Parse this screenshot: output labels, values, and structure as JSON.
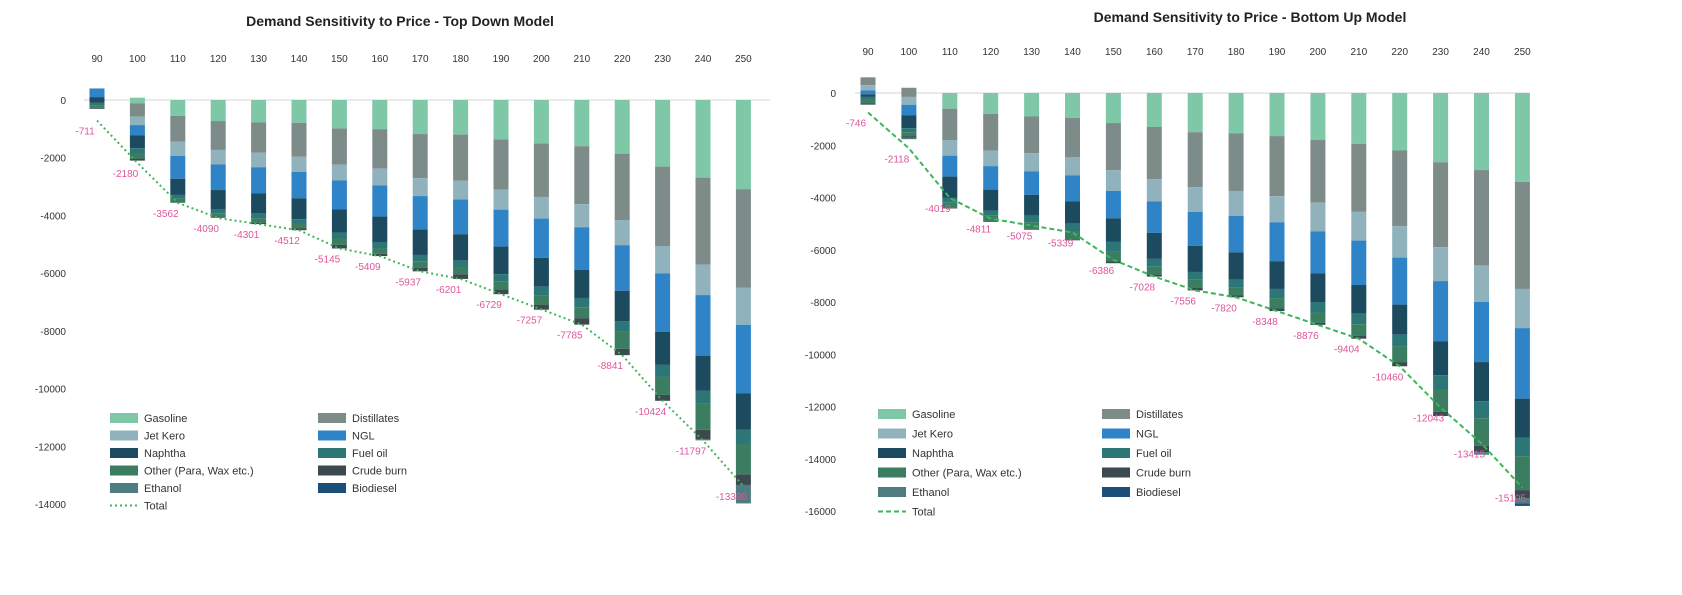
{
  "colors": {
    "Gasoline": "#7ec8a8",
    "Distillates": "#7d8b89",
    "Jet Kero": "#8fb2bd",
    "NGL": "#2f83c7",
    "Naphtha": "#1c4a5e",
    "Fuel oil": "#2d7678",
    "Other (Para, Wax etc.)": "#3a7d61",
    "Crude burn": "#3c4a50",
    "Ethanol": "#4f7c80",
    "Biodiesel": "#1b4f7a",
    "Total": "#3fb55a",
    "label": "#e0559a"
  },
  "chart_data": [
    {
      "type": "bar",
      "stacked": true,
      "title": "Demand Sensitivity to Price - Top Down Model",
      "categories": [
        "90",
        "100",
        "110",
        "120",
        "130",
        "140",
        "150",
        "160",
        "170",
        "180",
        "190",
        "200",
        "210",
        "220",
        "230",
        "240",
        "250"
      ],
      "x_axis_position": "top",
      "ylim": [
        -14000,
        0
      ],
      "yticks": [
        "0",
        "-2000",
        "-4000",
        "-6000",
        "-8000",
        "-10000",
        "-12000",
        "-14000"
      ],
      "grid": false,
      "legend_position": "bottom-left",
      "legend": [
        "Gasoline",
        "Distillates",
        "Jet Kero",
        "NGL",
        "Naphtha",
        "Fuel oil",
        "Other (Para, Wax etc.)",
        "Crude burn",
        "Ethanol",
        "Biodiesel",
        "Total"
      ],
      "series": [
        {
          "name": "Gasoline",
          "values": [
            0,
            -200,
            -550,
            -730,
            -780,
            -790,
            -990,
            -1010,
            -1180,
            -1200,
            -1370,
            -1510,
            -1600,
            -1860,
            -2310,
            -2690,
            -3090
          ]
        },
        {
          "name": "Distillates",
          "values": [
            0,
            -450,
            -890,
            -1000,
            -1050,
            -1170,
            -1250,
            -1370,
            -1530,
            -1600,
            -1730,
            -1850,
            -2010,
            -2300,
            -2750,
            -3020,
            -3420
          ]
        },
        {
          "name": "Jet Kero",
          "values": [
            0,
            -300,
            -500,
            -500,
            -500,
            -530,
            -550,
            -580,
            -620,
            -650,
            -700,
            -750,
            -800,
            -870,
            -950,
            -1050,
            -1280
          ]
        },
        {
          "name": "NGL",
          "values": [
            -300,
            -350,
            -790,
            -890,
            -900,
            -920,
            -1000,
            -1080,
            -1160,
            -1200,
            -1280,
            -1360,
            -1480,
            -1580,
            -2020,
            -2100,
            -2380
          ]
        },
        {
          "name": "Naphtha",
          "values": [
            -200,
            -450,
            -560,
            -680,
            -700,
            -720,
            -800,
            -880,
            -880,
            -920,
            -960,
            -1000,
            -970,
            -1050,
            -1150,
            -1220,
            -1250
          ]
        },
        {
          "name": "Fuel oil",
          "values": [
            -100,
            -200,
            -120,
            -140,
            -170,
            -150,
            -210,
            -210,
            -220,
            -250,
            -260,
            -300,
            -320,
            -360,
            -400,
            -450,
            -500
          ]
        },
        {
          "name": "Other (Para, Wax etc.)",
          "values": [
            -71,
            -160,
            -100,
            -100,
            -150,
            -160,
            -220,
            -200,
            -230,
            -220,
            -270,
            -320,
            -380,
            -600,
            -640,
            -900,
            -1050
          ]
        },
        {
          "name": "Crude burn",
          "values": [
            -30,
            -70,
            -40,
            -40,
            -51,
            -72,
            -125,
            -79,
            -117,
            -161,
            -159,
            -177,
            -225,
            -221,
            -204,
            -317,
            -370
          ]
        },
        {
          "name": "Ethanol",
          "values": [
            -10,
            0,
            -12,
            0,
            0,
            0,
            0,
            0,
            0,
            0,
            0,
            0,
            0,
            0,
            0,
            -48,
            -640
          ]
        },
        {
          "name": "Biodiesel",
          "values": [
            0,
            0,
            0,
            0,
            0,
            0,
            0,
            0,
            0,
            0,
            0,
            0,
            0,
            0,
            0,
            0,
            0
          ]
        }
      ],
      "positive_offsets": [
        400,
        80,
        0,
        0,
        0,
        0,
        0,
        0,
        0,
        0,
        0,
        0,
        0,
        0,
        0,
        0,
        0
      ],
      "total": {
        "name": "Total",
        "values": [
          -711,
          -2180,
          -3562,
          -4090,
          -4301,
          -4512,
          -5145,
          -5409,
          -5937,
          -6201,
          -6729,
          -7257,
          -7785,
          -8841,
          -10424,
          -11797,
          -13380
        ],
        "labels": [
          "-711",
          "-2180",
          "-3562",
          "-4090",
          "-4301",
          "-4512",
          "-5145",
          "-5409",
          "-5937",
          "-6201",
          "-6729",
          "-7257",
          "-7785",
          "-8841",
          "-10424",
          "-11797",
          "-13380"
        ],
        "line_style": "dotted"
      }
    },
    {
      "type": "bar",
      "stacked": true,
      "title": "Demand Sensitivity to Price - Bottom Up Model",
      "categories": [
        "90",
        "100",
        "110",
        "120",
        "130",
        "140",
        "150",
        "160",
        "170",
        "180",
        "190",
        "200",
        "210",
        "220",
        "230",
        "240",
        "250"
      ],
      "x_axis_position": "top",
      "ylim": [
        -16000,
        0
      ],
      "yticks": [
        "0",
        "-2000",
        "-4000",
        "-6000",
        "-8000",
        "-10000",
        "-12000",
        "-14000",
        "-16000"
      ],
      "grid": false,
      "legend_position": "bottom-left",
      "legend": [
        "Gasoline",
        "Distillates",
        "Jet Kero",
        "NGL",
        "Naphtha",
        "Fuel oil",
        "Other (Para, Wax etc.)",
        "Crude burn",
        "Ethanol",
        "Biodiesel",
        "Total"
      ],
      "series": [
        {
          "name": "Gasoline",
          "values": [
            0,
            0,
            -600,
            -800,
            -900,
            -950,
            -1150,
            -1300,
            -1500,
            -1550,
            -1650,
            -1800,
            -1950,
            -2200,
            -2650,
            -2950,
            -3400
          ]
        },
        {
          "name": "Distillates",
          "values": [
            -300,
            -350,
            -1200,
            -1400,
            -1400,
            -1500,
            -1800,
            -2000,
            -2100,
            -2200,
            -2300,
            -2400,
            -2600,
            -2900,
            -3250,
            -3650,
            -4100
          ]
        },
        {
          "name": "Jet Kero",
          "values": [
            -200,
            -300,
            -600,
            -600,
            -700,
            -700,
            -800,
            -850,
            -950,
            -950,
            -1000,
            -1100,
            -1100,
            -1200,
            -1300,
            -1400,
            -1500
          ]
        },
        {
          "name": "NGL",
          "values": [
            -150,
            -400,
            -800,
            -900,
            -900,
            -1000,
            -1050,
            -1200,
            -1300,
            -1400,
            -1500,
            -1600,
            -1700,
            -1800,
            -2300,
            -2300,
            -2700
          ]
        },
        {
          "name": "Naphtha",
          "values": [
            -100,
            -500,
            -800,
            -800,
            -800,
            -850,
            -900,
            -1000,
            -1000,
            -1050,
            -1050,
            -1100,
            -1100,
            -1150,
            -1300,
            -1500,
            -1500
          ]
        },
        {
          "name": "Fuel oil",
          "values": [
            -100,
            -150,
            -200,
            -200,
            -250,
            -300,
            -350,
            -300,
            -300,
            -300,
            -350,
            -400,
            -400,
            -450,
            -550,
            -650,
            -700
          ]
        },
        {
          "name": "Other (Para, Wax etc.)",
          "values": [
            -150,
            -150,
            -200,
            -200,
            -250,
            -300,
            -400,
            -300,
            -300,
            -300,
            -400,
            -400,
            -450,
            -600,
            -850,
            -1050,
            -1300
          ]
        },
        {
          "name": "Crude burn",
          "values": [
            -46,
            -68,
            -19,
            -31,
            -33,
            -39,
            -66,
            -78,
            -106,
            -70,
            -98,
            -76,
            -104,
            -160,
            -163,
            -246,
            -305
          ]
        },
        {
          "name": "Ethanol",
          "values": [
            0,
            -50,
            0,
            0,
            0,
            0,
            0,
            0,
            0,
            0,
            0,
            0,
            0,
            0,
            0,
            -100,
            -200
          ]
        },
        {
          "name": "Biodiesel",
          "values": [
            0,
            0,
            0,
            0,
            0,
            0,
            0,
            0,
            0,
            0,
            0,
            0,
            0,
            0,
            0,
            0,
            -100
          ]
        }
      ],
      "positive_offsets": [
        600,
        200,
        0,
        0,
        0,
        0,
        0,
        0,
        0,
        0,
        0,
        0,
        0,
        0,
        0,
        0,
        0
      ],
      "total": {
        "name": "Total",
        "values": [
          -746,
          -2118,
          -4019,
          -4811,
          -5075,
          -5339,
          -6386,
          -7028,
          -7556,
          -7820,
          -8348,
          -8876,
          -9404,
          -10460,
          -12043,
          -13415,
          -15105
        ],
        "labels": [
          "-746",
          "-2118",
          "-4019",
          "-4811",
          "-5075",
          "-5339",
          "-6386",
          "-7028",
          "-7556",
          "-7820",
          "-8348",
          "-8876",
          "-9404",
          "-10460",
          "-12043",
          "-13415",
          "-15105"
        ],
        "line_style": "dashed"
      }
    }
  ]
}
